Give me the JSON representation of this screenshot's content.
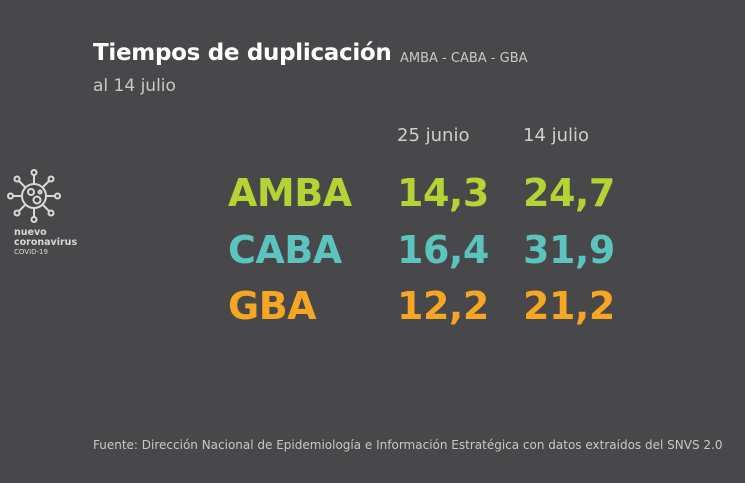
{
  "header": {
    "title": "Tiempos de duplicación",
    "subtitle": "AMBA - CABA - GBA",
    "date": "al 14 julio"
  },
  "logo": {
    "line1": "nuevo",
    "line2": "coronavirus",
    "line3": "COVID-19",
    "icon": "virus-icon"
  },
  "chart_data": {
    "type": "table",
    "columns": [
      "25 junio",
      "14 julio"
    ],
    "rows": [
      {
        "label": "AMBA",
        "values": [
          "14,3",
          "24,7"
        ],
        "color": "#b5d334"
      },
      {
        "label": "CABA",
        "values": [
          "16,4",
          "31,9"
        ],
        "color": "#5bc4bf"
      },
      {
        "label": "GBA",
        "values": [
          "12,2",
          "21,2"
        ],
        "color": "#f5a623"
      }
    ]
  },
  "footer": "Fuente: Dirección Nacional de Epidemiología e Información Estratégica con datos extraídos del SNVS 2.0"
}
